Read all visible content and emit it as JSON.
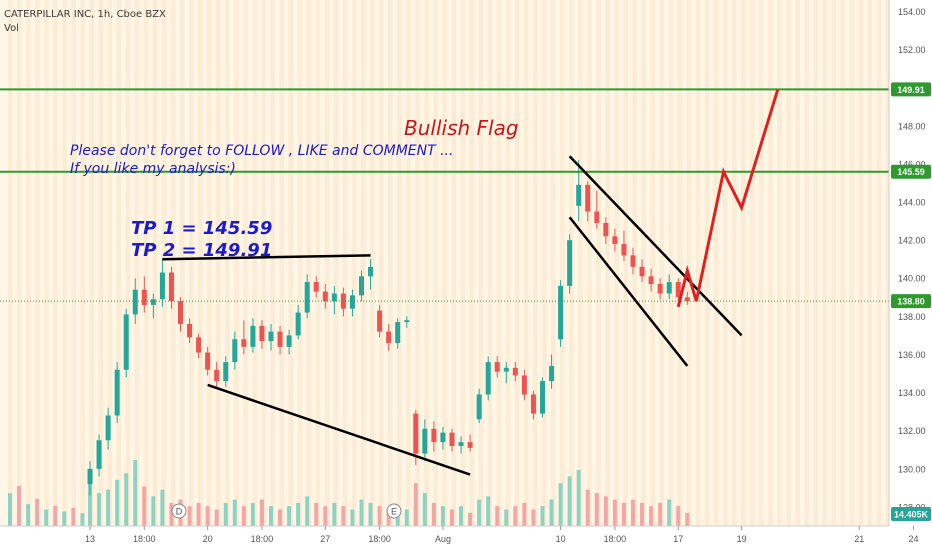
{
  "header": {
    "symbol_line": "CATERPILLAR INC, 1h, Cboe BZX",
    "volume_label": "Vol"
  },
  "annotations": {
    "title": "Bullish Flag",
    "message_line1": "Please don't forget  to FOLLOW , LIKE and COMMENT ...",
    "message_line2": "If you like my analysis:)",
    "tp1": "TP 1 = 145.59",
    "tp2": "TP 2 = 149.91",
    "event_d": "D",
    "event_e": "E"
  },
  "chart_data": {
    "type": "candlestick",
    "symbol": "CATERPILLAR INC",
    "interval": "1h",
    "exchange": "Cboe BZX",
    "y_ticks": [
      128.0,
      130.0,
      132.0,
      134.0,
      136.0,
      138.0,
      140.0,
      142.0,
      144.0,
      146.0,
      148.0,
      150.0,
      152.0,
      154.0
    ],
    "ylim": [
      127.0,
      154.6
    ],
    "x_ticks": [
      {
        "label": "13",
        "index": 0
      },
      {
        "label": "18:00",
        "index": 6
      },
      {
        "label": "20",
        "index": 13
      },
      {
        "label": "18:00",
        "index": 19
      },
      {
        "label": "27",
        "index": 26
      },
      {
        "label": "18:00",
        "index": 32
      },
      {
        "label": "Aug",
        "index": 39
      },
      {
        "label": "10",
        "index": 52
      },
      {
        "label": "18:00",
        "index": 58
      },
      {
        "label": "17",
        "index": 65
      },
      {
        "label": "19",
        "index": 72
      },
      {
        "label": "21",
        "index": 85
      },
      {
        "label": "24",
        "index": 91
      }
    ],
    "horizontal_levels": [
      {
        "label": "149.91",
        "value": 149.91,
        "color": "#2e9a2e"
      },
      {
        "label": "145.59",
        "value": 145.59,
        "color": "#2e9a2e"
      }
    ],
    "last_price": {
      "label": "138.80",
      "value": 138.8,
      "color": "#2e9a2e"
    },
    "volume_last": {
      "label": "14.405K",
      "value": 14405,
      "color": "#26a69a"
    },
    "candles": [
      {
        "o": 129.2,
        "h": 130.4,
        "l": 128.6,
        "c": 130.0
      },
      {
        "o": 130.0,
        "h": 131.8,
        "l": 129.6,
        "c": 131.5
      },
      {
        "o": 131.5,
        "h": 133.2,
        "l": 131.0,
        "c": 132.8
      },
      {
        "o": 132.8,
        "h": 135.6,
        "l": 132.4,
        "c": 135.2
      },
      {
        "o": 135.2,
        "h": 138.4,
        "l": 134.8,
        "c": 138.1
      },
      {
        "o": 138.1,
        "h": 140.0,
        "l": 137.6,
        "c": 139.4
      },
      {
        "o": 139.4,
        "h": 140.1,
        "l": 138.2,
        "c": 138.6
      },
      {
        "o": 138.6,
        "h": 139.2,
        "l": 137.9,
        "c": 138.9
      },
      {
        "o": 138.9,
        "h": 141.0,
        "l": 138.5,
        "c": 140.3
      },
      {
        "o": 140.3,
        "h": 140.6,
        "l": 138.4,
        "c": 138.8
      },
      {
        "o": 138.8,
        "h": 139.0,
        "l": 137.2,
        "c": 137.6
      },
      {
        "o": 137.6,
        "h": 137.9,
        "l": 136.6,
        "c": 136.9
      },
      {
        "o": 136.9,
        "h": 137.1,
        "l": 135.8,
        "c": 136.1
      },
      {
        "o": 136.1,
        "h": 136.4,
        "l": 134.9,
        "c": 135.2
      },
      {
        "o": 135.2,
        "h": 135.6,
        "l": 134.2,
        "c": 134.6
      },
      {
        "o": 134.6,
        "h": 135.9,
        "l": 134.3,
        "c": 135.6
      },
      {
        "o": 135.6,
        "h": 137.2,
        "l": 135.2,
        "c": 136.8
      },
      {
        "o": 136.8,
        "h": 137.8,
        "l": 136.0,
        "c": 136.4
      },
      {
        "o": 136.4,
        "h": 137.9,
        "l": 136.1,
        "c": 137.5
      },
      {
        "o": 137.5,
        "h": 137.8,
        "l": 136.3,
        "c": 136.7
      },
      {
        "o": 136.7,
        "h": 137.6,
        "l": 136.2,
        "c": 137.2
      },
      {
        "o": 137.2,
        "h": 137.5,
        "l": 136.0,
        "c": 136.4
      },
      {
        "o": 136.4,
        "h": 137.3,
        "l": 136.0,
        "c": 137.0
      },
      {
        "o": 137.0,
        "h": 138.6,
        "l": 136.8,
        "c": 138.2
      },
      {
        "o": 138.2,
        "h": 140.2,
        "l": 137.9,
        "c": 139.8
      },
      {
        "o": 139.8,
        "h": 140.1,
        "l": 139.0,
        "c": 139.3
      },
      {
        "o": 139.3,
        "h": 139.7,
        "l": 138.4,
        "c": 138.8
      },
      {
        "o": 138.8,
        "h": 139.6,
        "l": 138.1,
        "c": 139.2
      },
      {
        "o": 139.2,
        "h": 139.5,
        "l": 138.0,
        "c": 138.4
      },
      {
        "o": 138.4,
        "h": 139.4,
        "l": 138.0,
        "c": 139.1
      },
      {
        "o": 139.1,
        "h": 140.4,
        "l": 138.8,
        "c": 140.1
      },
      {
        "o": 140.1,
        "h": 141.0,
        "l": 139.4,
        "c": 140.6
      },
      {
        "o": 138.3,
        "h": 138.6,
        "l": 136.9,
        "c": 137.2
      },
      {
        "o": 137.2,
        "h": 137.6,
        "l": 136.2,
        "c": 136.6
      },
      {
        "o": 136.6,
        "h": 137.9,
        "l": 136.3,
        "c": 137.7
      },
      {
        "o": 137.7,
        "h": 138.0,
        "l": 137.4,
        "c": 137.8
      },
      {
        "o": 132.9,
        "h": 133.1,
        "l": 130.2,
        "c": 130.8
      },
      {
        "o": 130.8,
        "h": 132.6,
        "l": 130.4,
        "c": 132.1
      },
      {
        "o": 132.1,
        "h": 132.5,
        "l": 130.9,
        "c": 131.4
      },
      {
        "o": 131.4,
        "h": 132.2,
        "l": 131.0,
        "c": 131.9
      },
      {
        "o": 131.9,
        "h": 132.1,
        "l": 130.9,
        "c": 131.2
      },
      {
        "o": 131.2,
        "h": 131.7,
        "l": 130.8,
        "c": 131.4
      },
      {
        "o": 131.4,
        "h": 131.8,
        "l": 130.9,
        "c": 131.1
      },
      {
        "o": 132.6,
        "h": 134.2,
        "l": 132.4,
        "c": 133.9
      },
      {
        "o": 133.9,
        "h": 135.9,
        "l": 133.6,
        "c": 135.6
      },
      {
        "o": 135.6,
        "h": 135.9,
        "l": 134.8,
        "c": 135.1
      },
      {
        "o": 135.1,
        "h": 135.6,
        "l": 134.5,
        "c": 135.3
      },
      {
        "o": 135.3,
        "h": 135.6,
        "l": 134.6,
        "c": 134.9
      },
      {
        "o": 134.9,
        "h": 135.2,
        "l": 133.6,
        "c": 133.9
      },
      {
        "o": 133.9,
        "h": 134.1,
        "l": 132.6,
        "c": 132.9
      },
      {
        "o": 132.9,
        "h": 134.8,
        "l": 132.7,
        "c": 134.6
      },
      {
        "o": 134.6,
        "h": 136.0,
        "l": 134.2,
        "c": 135.4
      },
      {
        "o": 136.8,
        "h": 139.9,
        "l": 136.4,
        "c": 139.6
      },
      {
        "o": 139.6,
        "h": 142.3,
        "l": 139.2,
        "c": 142.0
      },
      {
        "o": 143.8,
        "h": 146.2,
        "l": 143.0,
        "c": 144.9
      },
      {
        "o": 144.9,
        "h": 145.1,
        "l": 143.0,
        "c": 143.5
      },
      {
        "o": 143.5,
        "h": 144.6,
        "l": 142.6,
        "c": 142.9
      },
      {
        "o": 142.9,
        "h": 143.2,
        "l": 141.8,
        "c": 142.2
      },
      {
        "o": 142.2,
        "h": 142.6,
        "l": 141.4,
        "c": 141.8
      },
      {
        "o": 141.8,
        "h": 142.5,
        "l": 140.9,
        "c": 141.2
      },
      {
        "o": 141.2,
        "h": 141.6,
        "l": 140.2,
        "c": 140.6
      },
      {
        "o": 140.6,
        "h": 141.0,
        "l": 139.8,
        "c": 140.1
      },
      {
        "o": 140.1,
        "h": 140.5,
        "l": 139.3,
        "c": 139.7
      },
      {
        "o": 139.7,
        "h": 140.0,
        "l": 138.9,
        "c": 139.2
      },
      {
        "o": 139.2,
        "h": 140.2,
        "l": 138.9,
        "c": 139.8
      },
      {
        "o": 139.8,
        "h": 140.0,
        "l": 138.6,
        "c": 139.0
      },
      {
        "o": 139.0,
        "h": 139.3,
        "l": 138.6,
        "c": 138.8
      }
    ],
    "volume": [
      14,
      10,
      11,
      14,
      16,
      20,
      12,
      9,
      11,
      7,
      8,
      6,
      7,
      6,
      5,
      7,
      8,
      6,
      7,
      8,
      6,
      5,
      6,
      7,
      9,
      7,
      6,
      7,
      6,
      5,
      8,
      7,
      6,
      5,
      4,
      5,
      13,
      10,
      7,
      6,
      5,
      6,
      4,
      8,
      9,
      6,
      5,
      6,
      7,
      5,
      6,
      8,
      13,
      15,
      17,
      11,
      10,
      9,
      8,
      7,
      8,
      7,
      6,
      7,
      8,
      6,
      4
    ],
    "trendlines": [
      {
        "name": "consolidation-top-line",
        "points": [
          [
            8,
            141.0
          ],
          [
            31,
            141.2
          ]
        ],
        "color": "#000000"
      },
      {
        "name": "consolidation-bottom-line",
        "points": [
          [
            13,
            134.4
          ],
          [
            42,
            129.7
          ]
        ],
        "color": "#000000"
      },
      {
        "name": "flag-upper-line",
        "points": [
          [
            53,
            146.4
          ],
          [
            72,
            137.0
          ]
        ],
        "color": "#000000"
      },
      {
        "name": "flag-lower-line",
        "points": [
          [
            53,
            143.2
          ],
          [
            66,
            135.4
          ]
        ],
        "color": "#000000"
      }
    ],
    "projection_path": {
      "color": "#e02020",
      "points": [
        [
          65,
          138.5
        ],
        [
          66,
          140.4
        ],
        [
          67,
          138.8
        ],
        [
          70,
          145.59
        ],
        [
          72,
          143.7
        ],
        [
          76,
          149.91
        ]
      ]
    }
  }
}
